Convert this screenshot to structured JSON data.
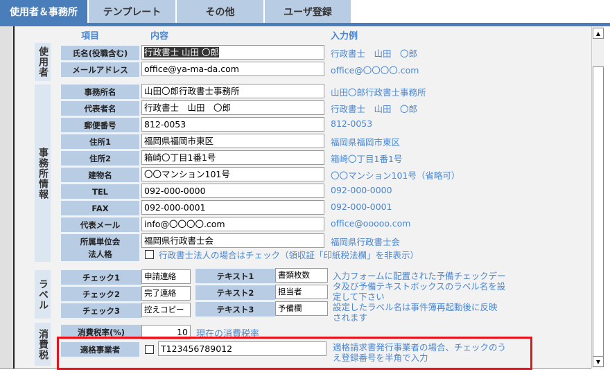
{
  "tabs": [
    "使用者＆事務所",
    "テンプレート",
    "その他",
    "ユーザ登録"
  ],
  "headers": {
    "item": "項目",
    "content": "内容",
    "example": "入力例"
  },
  "groups": {
    "user": "使用者",
    "office": "事務所情報",
    "label": "ラベル",
    "tax": "消費税"
  },
  "user_rows": [
    {
      "label": "氏名(役職含む)",
      "value": "行政書士 山田 〇郎",
      "example": "行政書士　山田　〇郎"
    },
    {
      "label": "メールアドレス",
      "value": "office@ya-ma-da.com",
      "example": "office@〇〇〇〇.com"
    }
  ],
  "office_rows": [
    {
      "label": "事務所名",
      "value": "山田〇郎行政書士事務所",
      "example": "山田〇郎行政書士事務所"
    },
    {
      "label": "代表者名",
      "value": "行政書士　山田　〇郎",
      "example": "行政書士　山田　〇郎"
    },
    {
      "label": "郵便番号",
      "value": "812-0053",
      "example": "812-0053"
    },
    {
      "label": "住所1",
      "value": "福岡県福岡市東区",
      "example": "福岡県福岡市東区"
    },
    {
      "label": "住所2",
      "value": "箱崎〇丁目1番1号",
      "example": "箱崎〇丁目1番1号"
    },
    {
      "label": "建物名",
      "value": "〇〇マンション101号",
      "example": "〇〇マンション101号（省略可）"
    },
    {
      "label": "TEL",
      "value": "092-000-0000",
      "example": "092-000-0000"
    },
    {
      "label": "FAX",
      "value": "092-000-0001",
      "example": "092-000-0001"
    },
    {
      "label": "代表メール",
      "value": "info@〇〇〇〇.com",
      "example": "office@ooooo.com"
    },
    {
      "label": "所属単位会",
      "value": "福岡県行政書士会",
      "example": "福岡県行政書士会"
    }
  ],
  "corp": {
    "label": "法人格",
    "text": "行政書士法人の場合はチェック（領収証「印紙税法欄」を非表示）",
    "checked": false
  },
  "label_rows": [
    {
      "check_label": "チェック1",
      "check_value": "申請連絡",
      "text_label": "テキスト1",
      "text_value": "書類枚数"
    },
    {
      "check_label": "チェック2",
      "check_value": "完了連絡",
      "text_label": "テキスト2",
      "text_value": "担当者"
    },
    {
      "check_label": "チェック3",
      "check_value": "控えコピー",
      "text_label": "テキスト3",
      "text_value": "予備欄"
    }
  ],
  "label_note": [
    "入力フォームに配置された予備チェックデー",
    "タ及び予備テキストボックスのラベル名を設",
    "定して下さい",
    "設定したラベル名は事件簿再起動後に反映",
    "されます"
  ],
  "tax": {
    "rate_label": "消費税率(%)",
    "rate_value": "10",
    "rate_note": "現在の消費税率",
    "qualified_label": "適格事業者",
    "qualified_checked": false,
    "qualified_value": "T123456789012",
    "qualified_note": [
      "適格請求書発行事業者の場合、チェックのう",
      "え登録番号を半角で入力"
    ]
  },
  "colors": {
    "tab_active": "#4a7ebb",
    "tab": "#b8cce4",
    "accent_text": "#4a86d0",
    "highlight": "#e8141c"
  }
}
